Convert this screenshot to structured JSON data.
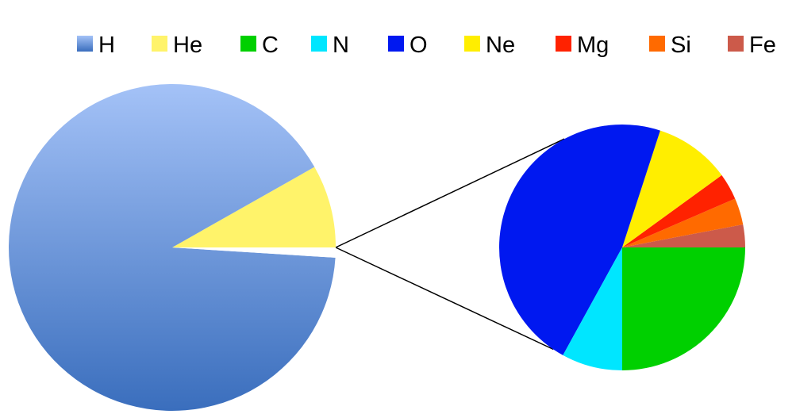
{
  "chart_data": {
    "type": "pie",
    "subtype": "pie-of-pie",
    "title": "",
    "legend": {
      "placement": "top",
      "entries": [
        "H",
        "He",
        "C",
        "N",
        "O",
        "Ne",
        "Mg",
        "Si",
        "Fe"
      ]
    },
    "main_pie": {
      "slices": [
        {
          "label": "H",
          "value": 90.8,
          "color": "#5b8ad6",
          "gradient": [
            "#a4c2f7",
            "#3a6ebd"
          ]
        },
        {
          "label": "He",
          "value": 8.2,
          "color": "#fff36a"
        },
        {
          "label": "other",
          "value": 1.0,
          "color": "#ffffff",
          "exploded_to_secondary": true
        }
      ]
    },
    "secondary_pie": {
      "slices": [
        {
          "label": "C",
          "value": 25.0,
          "color": "#00d000"
        },
        {
          "label": "N",
          "value": 8.0,
          "color": "#00e6ff"
        },
        {
          "label": "O",
          "value": 47.0,
          "color": "#0018f0"
        },
        {
          "label": "Ne",
          "value": 10.0,
          "color": "#ffee00"
        },
        {
          "label": "Mg",
          "value": 3.5,
          "color": "#ff2200"
        },
        {
          "label": "Si",
          "value": 3.5,
          "color": "#ff6a00"
        },
        {
          "label": "Fe",
          "value": 3.0,
          "color": "#cc5a4a"
        }
      ]
    },
    "grid": false
  }
}
